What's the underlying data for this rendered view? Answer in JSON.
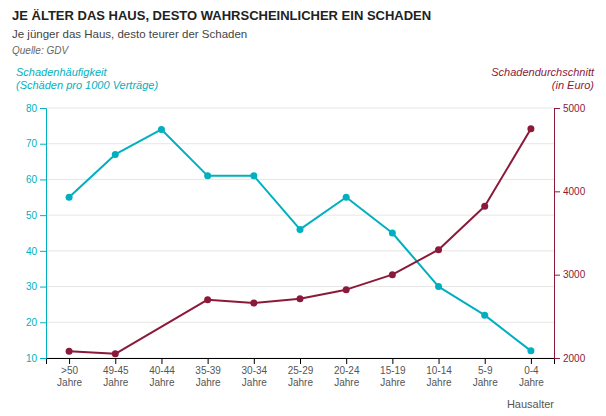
{
  "chart_data": {
    "type": "line",
    "title": "JE ÄLTER DAS HAUS, DESTO WAHRSCHEINLICHER EIN SCHADEN",
    "subtitle": "Je jünger das Haus, desto teurer der Schaden",
    "annotations": [
      "Quelle: GDV"
    ],
    "xlabel": "Hausalter",
    "ylabel": "Schadenhäufigkeit\n(Schäden pro 1000 Verträge)",
    "y2label": "Schadendurchschnitt\n(in Euro)",
    "categories": [
      ">50\nJahre",
      "49-45\nJahre",
      "40-44\nJahre",
      "35-39\nJahre",
      "30-34\nJahre",
      "25-29\nJahre",
      "20-24\nJahre",
      "15-19\nJahre",
      "10-14\nJahre",
      "5-9\nJahre",
      "0-4\nJahre"
    ],
    "series": [
      {
        "color": "#00B0C0",
        "values": [
          55,
          67,
          74,
          61,
          61,
          46,
          55,
          45,
          30,
          22,
          12
        ]
      },
      {
        "color": "#8B1A3A",
        "axis": "y2",
        "x": [
          ">50\nJahre",
          "49-45\nJahre",
          "35-39\nJahre",
          "30-34\nJahre",
          "25-29\nJahre",
          "20-24\nJahre",
          "15-19\nJahre",
          "10-14\nJahre",
          "5-9\nJahre",
          "0-4\nJahre"
        ],
        "values": [
          2080,
          2050,
          2700,
          2660,
          2710,
          2820,
          3000,
          3300,
          3820,
          4750
        ]
      }
    ],
    "ylim": [
      10,
      80
    ],
    "yticks": [
      10,
      20,
      30,
      40,
      50,
      60,
      70,
      80
    ],
    "y2lim": [
      2000,
      5000
    ],
    "y2ticks": [
      2000,
      3000,
      4000,
      5000
    ],
    "grid": true,
    "marker": "circle"
  }
}
